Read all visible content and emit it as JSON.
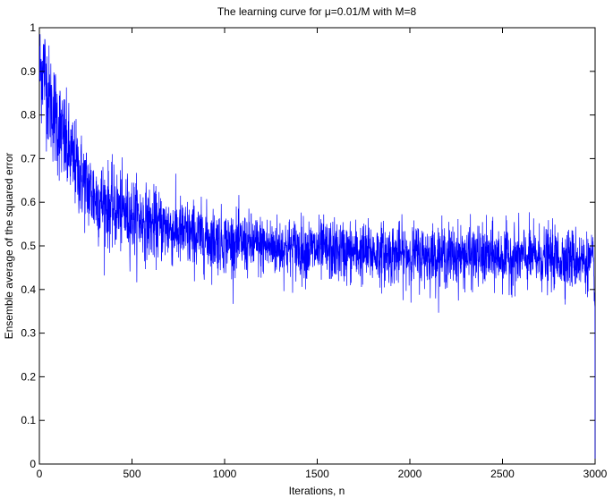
{
  "chart_data": {
    "type": "line",
    "title": "The learning curve for μ=0.01/M with M=8",
    "xlabel": "Iterations, n",
    "ylabel": "Ensemble average of the squared error",
    "xlim": [
      0,
      3000
    ],
    "ylim": [
      0,
      1
    ],
    "xticks": [
      0,
      500,
      1000,
      1500,
      2000,
      2500,
      3000
    ],
    "yticks": [
      0,
      0.1,
      0.2,
      0.3,
      0.4,
      0.5,
      0.6,
      0.7,
      0.8,
      0.9,
      1
    ],
    "xtick_labels": [
      "0",
      "500",
      "1000",
      "1500",
      "2000",
      "2500",
      "3000"
    ],
    "ytick_labels": [
      "0",
      "0.1",
      "0.2",
      "0.3",
      "0.4",
      "0.5",
      "0.6",
      "0.7",
      "0.8",
      "0.9",
      "1"
    ],
    "grid": false,
    "line_color": "#0000ff",
    "series": [
      {
        "x": [
          0,
          25,
          50,
          100,
          150,
          200,
          250,
          300,
          400,
          500,
          600,
          700,
          800,
          1000,
          1200,
          1500,
          1800,
          2000,
          2500,
          2900,
          2990,
          2999,
          3000
        ],
        "y": [
          0.9,
          0.91,
          0.84,
          0.78,
          0.72,
          0.68,
          0.64,
          0.61,
          0.585,
          0.57,
          0.55,
          0.54,
          0.525,
          0.51,
          0.5,
          0.49,
          0.483,
          0.48,
          0.475,
          0.47,
          0.46,
          0.36,
          0.0
        ],
        "noise_amplitude": [
          0.06,
          0.06,
          0.06,
          0.06,
          0.055,
          0.05,
          0.05,
          0.05,
          0.045,
          0.045,
          0.04,
          0.04,
          0.04,
          0.035,
          0.035,
          0.035,
          0.035,
          0.035,
          0.035,
          0.035,
          0.03,
          0.0,
          0.0
        ]
      }
    ]
  }
}
